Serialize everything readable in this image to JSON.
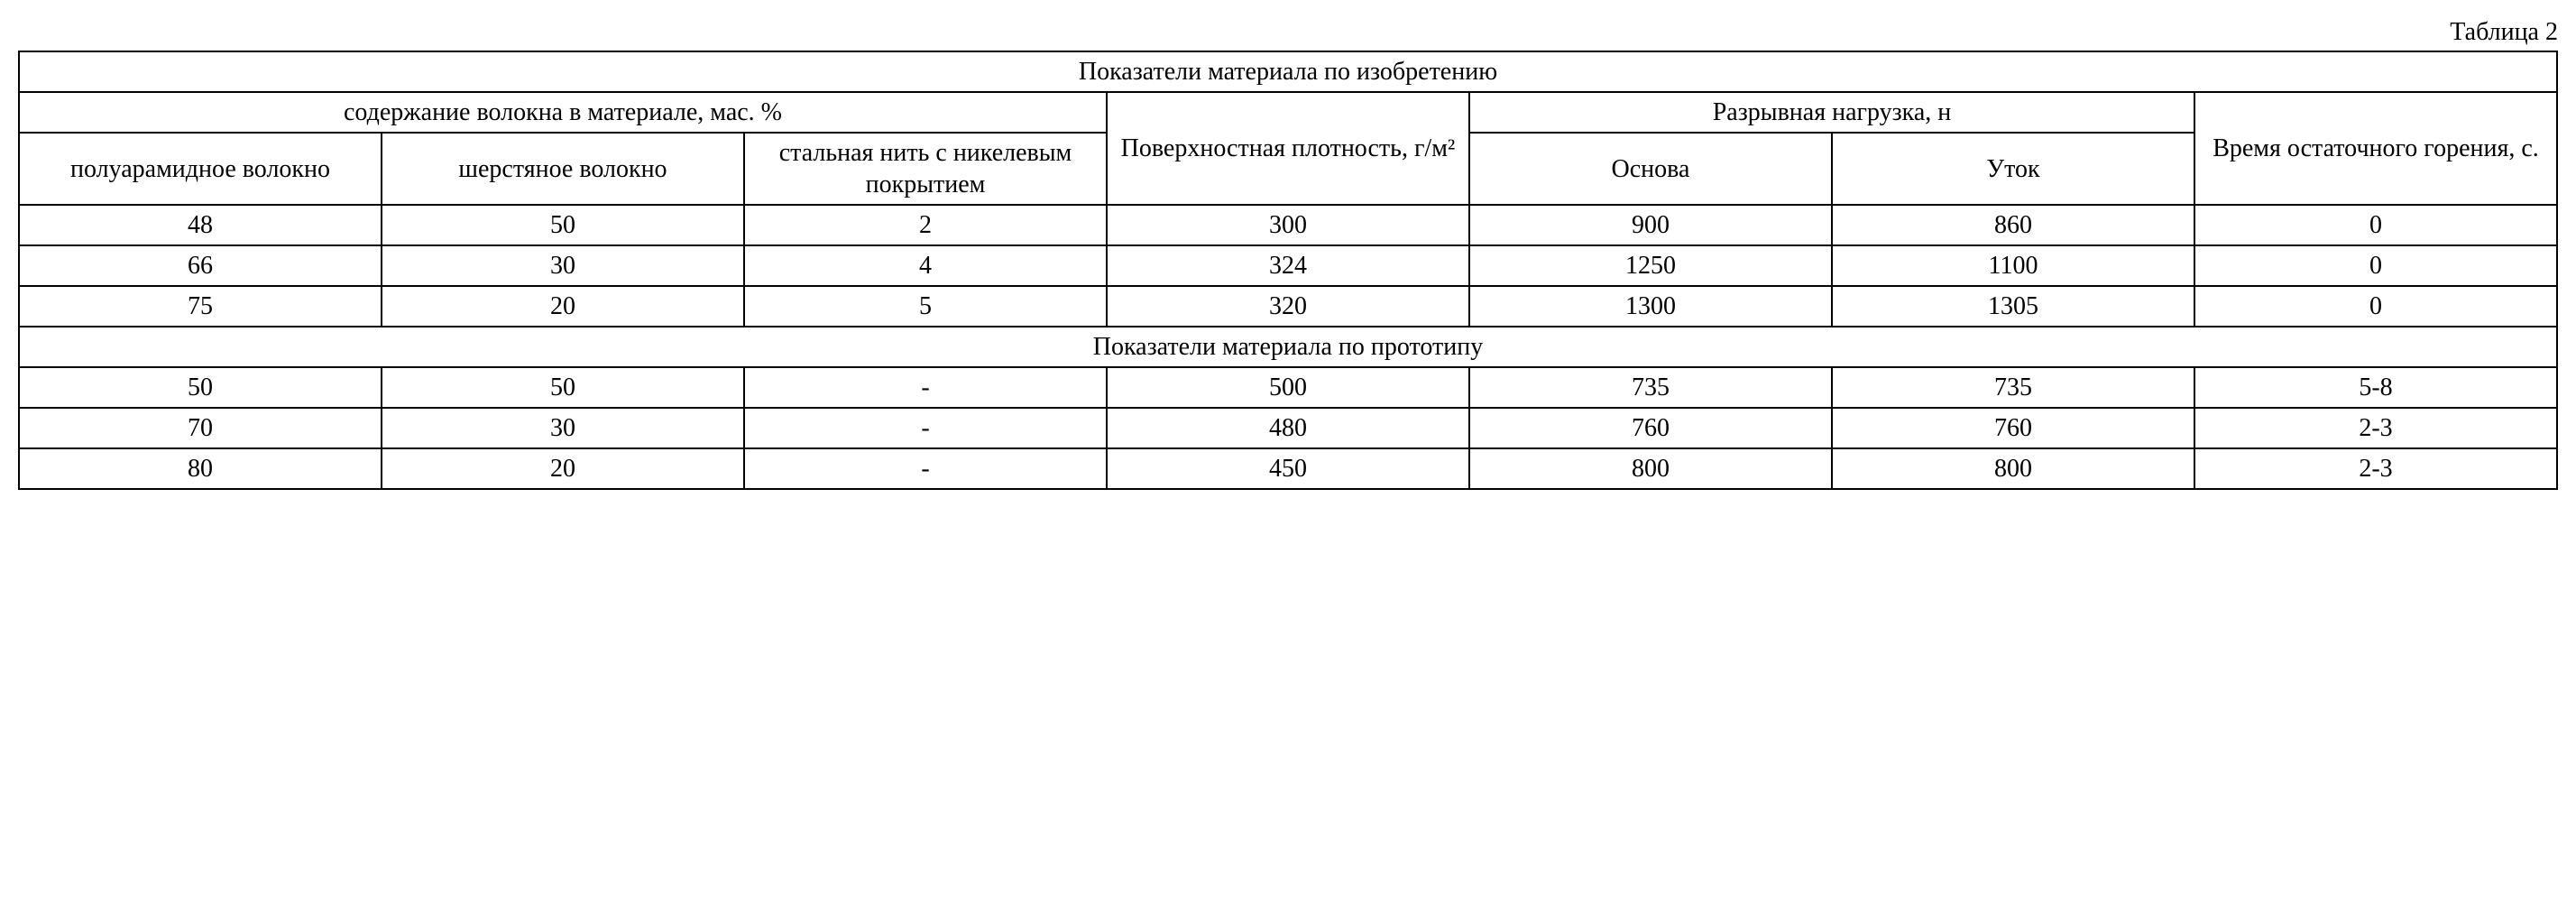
{
  "caption": "Таблица 2",
  "table": {
    "section1_title": "Показатели материала по изобретению",
    "header": {
      "fiber_group": "содержание волокна в материале, мас. %",
      "fiber_cols": {
        "polyaramid": "полуарамидное волокно",
        "wool": "шерстяное волокно",
        "steel": "стальная нить с никелевым покрытием"
      },
      "density": "Поверхностная плотность, г/м²",
      "load_group": "Разрывная нагрузка, н",
      "load_cols": {
        "warp": "Основа",
        "weft": "Уток"
      },
      "burn_time": "Время остаточного горения, с."
    },
    "rows1": [
      {
        "polyaramid": "48",
        "wool": "50",
        "steel": "2",
        "density": "300",
        "warp": "900",
        "weft": "860",
        "burn": "0"
      },
      {
        "polyaramid": "66",
        "wool": "30",
        "steel": "4",
        "density": "324",
        "warp": "1250",
        "weft": "1100",
        "burn": "0"
      },
      {
        "polyaramid": "75",
        "wool": "20",
        "steel": "5",
        "density": "320",
        "warp": "1300",
        "weft": "1305",
        "burn": "0"
      }
    ],
    "section2_title": "Показатели материала по прототипу",
    "rows2": [
      {
        "polyaramid": "50",
        "wool": "50",
        "steel": "-",
        "density": "500",
        "warp": "735",
        "weft": "735",
        "burn": "5-8"
      },
      {
        "polyaramid": "70",
        "wool": "30",
        "steel": "-",
        "density": "480",
        "warp": "760",
        "weft": "760",
        "burn": "2-3"
      },
      {
        "polyaramid": "80",
        "wool": "20",
        "steel": "-",
        "density": "450",
        "warp": "800",
        "weft": "800",
        "burn": "2-3"
      }
    ]
  },
  "style": {
    "font_family": "Times New Roman",
    "font_size_pt": 14,
    "border_color": "#000000",
    "background_color": "#ffffff",
    "text_color": "#000000"
  }
}
